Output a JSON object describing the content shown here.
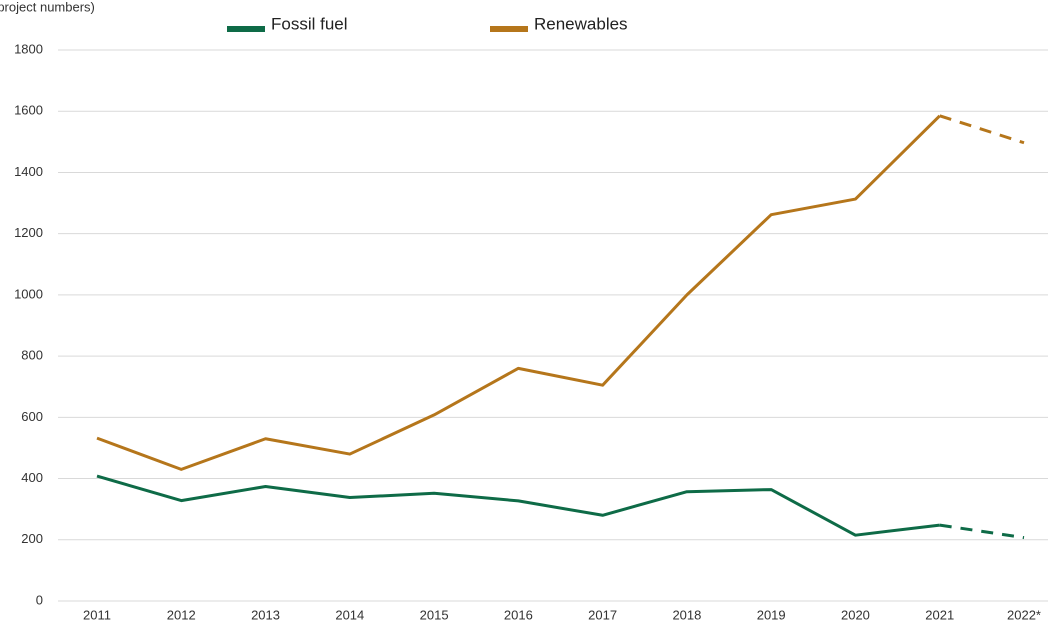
{
  "chart_data": {
    "type": "line",
    "y_label": "(project numbers)",
    "categories": [
      "2011",
      "2012",
      "2013",
      "2014",
      "2015",
      "2016",
      "2017",
      "2018",
      "2019",
      "2020",
      "2021",
      "2022*"
    ],
    "series": [
      {
        "name": "Fossil fuel",
        "color": "#0e6b47",
        "values": [
          408,
          328,
          374,
          338,
          352,
          327,
          280,
          357,
          364,
          215,
          248,
          207
        ]
      },
      {
        "name": "Renewables",
        "color": "#b5761b",
        "values": [
          532,
          430,
          530,
          480,
          608,
          760,
          705,
          1000,
          1262,
          1313,
          1585,
          1497
        ]
      }
    ],
    "dashed_from_index": 10,
    "ylim": [
      0,
      1800
    ],
    "yticks": [
      0,
      200,
      400,
      600,
      800,
      1000,
      1200,
      1400,
      1600,
      1800
    ],
    "grid": true
  }
}
